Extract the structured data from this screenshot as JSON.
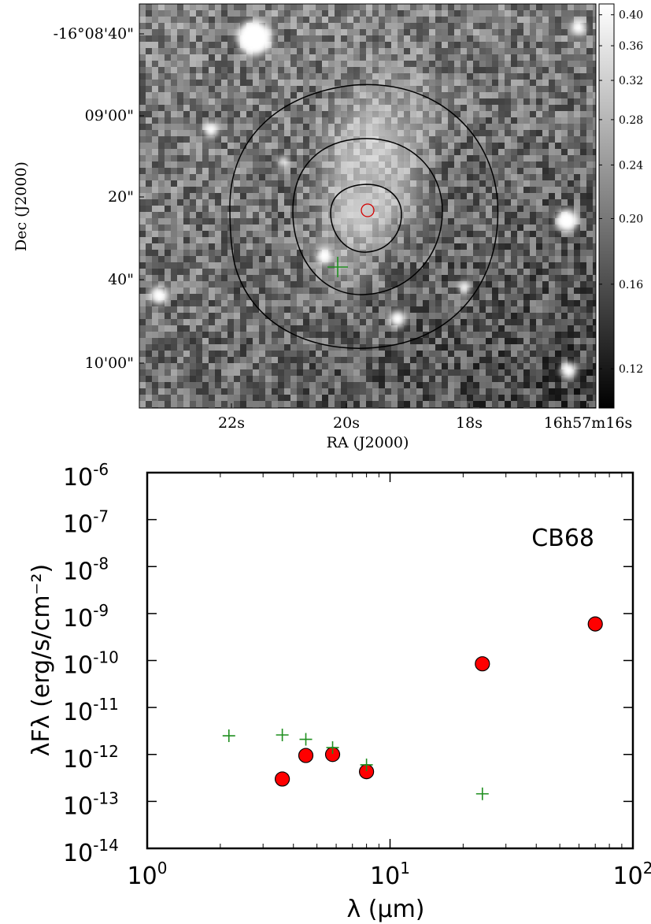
{
  "chart_data": [
    {
      "type": "heatmap",
      "xlabel": "RA (J2000)",
      "ylabel": "Dec (J2000)",
      "x_tick_labels": [
        "22s",
        "20s",
        "18s",
        "16h57m16s"
      ],
      "y_tick_labels": [
        "-16°08'40\"",
        "09'00\"",
        "20\"",
        "40\"",
        "10'00\""
      ],
      "colorbar": {
        "ticks": [
          0.4,
          0.36,
          0.32,
          0.28,
          0.24,
          0.2,
          0.16,
          0.12
        ],
        "tick_labels": [
          "0.40",
          "0.36",
          "0.32",
          "0.28",
          "0.24",
          "0.20",
          "0.16",
          "0.12"
        ],
        "range": [
          0.105,
          0.415
        ],
        "colormap": "grayscale"
      },
      "colors": {
        "contour": "#000000",
        "circle_marker": "#d40000",
        "plus_marker": "#1f8f1f"
      }
    },
    {
      "type": "scatter",
      "xscale": "log",
      "yscale": "log",
      "xlim": [
        1,
        100
      ],
      "ylim": [
        1e-14,
        1e-06
      ],
      "xlabel": "λ (μm)",
      "ylabel": "λFλ (erg/s/cm⁻²)",
      "annotation": "CB68",
      "x_tick_labels": [
        {
          "base": "10",
          "exp": "0",
          "value": 1
        },
        {
          "base": "10",
          "exp": "1",
          "value": 10
        },
        {
          "base": "10",
          "exp": "2",
          "value": 100
        }
      ],
      "y_tick_labels": [
        {
          "base": "10",
          "exp": "-6",
          "value": 1e-06
        },
        {
          "base": "10",
          "exp": "-7",
          "value": 1e-07
        },
        {
          "base": "10",
          "exp": "-8",
          "value": 1e-08
        },
        {
          "base": "10",
          "exp": "-9",
          "value": 1e-09
        },
        {
          "base": "10",
          "exp": "-10",
          "value": 1e-10
        },
        {
          "base": "10",
          "exp": "-11",
          "value": 1e-11
        },
        {
          "base": "10",
          "exp": "-12",
          "value": 1e-12
        },
        {
          "base": "10",
          "exp": "-13",
          "value": 1e-13
        },
        {
          "base": "10",
          "exp": "-14",
          "value": 1e-14
        }
      ],
      "series": [
        {
          "marker": "circle",
          "color": "#ff0000",
          "points": [
            {
              "x": 3.6,
              "y": 3e-13
            },
            {
              "x": 4.5,
              "y": 9.5e-13
            },
            {
              "x": 5.8,
              "y": 1e-12
            },
            {
              "x": 8.0,
              "y": 4.3e-13
            },
            {
              "x": 24,
              "y": 8.5e-11
            },
            {
              "x": 70,
              "y": 6e-10
            }
          ]
        },
        {
          "marker": "plus",
          "color": "#1f8f1f",
          "points": [
            {
              "x": 2.17,
              "y": 2.5e-12
            },
            {
              "x": 3.6,
              "y": 2.6e-12
            },
            {
              "x": 4.5,
              "y": 2.1e-12
            },
            {
              "x": 5.8,
              "y": 1.4e-12
            },
            {
              "x": 8.0,
              "y": 6e-13
            },
            {
              "x": 24,
              "y": 1.45e-13
            }
          ]
        }
      ]
    }
  ]
}
